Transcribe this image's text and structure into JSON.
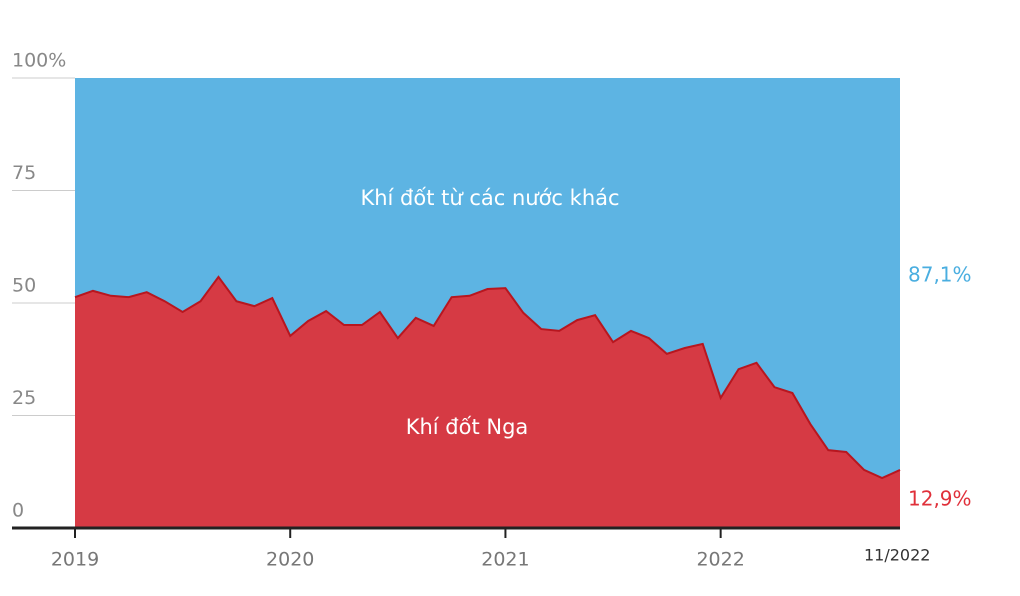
{
  "chart_data": {
    "type": "stacked-area",
    "x": [
      "2019-01",
      "2019-02",
      "2019-03",
      "2019-04",
      "2019-05",
      "2019-06",
      "2019-07",
      "2019-08",
      "2019-09",
      "2019-10",
      "2019-11",
      "2019-12",
      "2020-01",
      "2020-02",
      "2020-03",
      "2020-04",
      "2020-05",
      "2020-06",
      "2020-07",
      "2020-08",
      "2020-09",
      "2020-10",
      "2020-11",
      "2020-12",
      "2021-01",
      "2021-02",
      "2021-03",
      "2021-04",
      "2021-05",
      "2021-06",
      "2021-07",
      "2021-08",
      "2021-09",
      "2021-10",
      "2021-11",
      "2021-12",
      "2022-01",
      "2022-02",
      "2022-03",
      "2022-04",
      "2022-05",
      "2022-06",
      "2022-07",
      "2022-08",
      "2022-09",
      "2022-10",
      "2022-11"
    ],
    "series": [
      {
        "name": "Khí đốt Nga",
        "color": "#d63a44",
        "label_color": "#e0303a",
        "values": [
          51.3,
          52.7,
          51.6,
          51.3,
          52.4,
          50.4,
          48,
          50.4,
          55.8,
          50.4,
          49.3,
          51.1,
          42.7,
          46,
          48.2,
          45.1,
          45.1,
          48,
          42.2,
          46.7,
          44.9,
          51.3,
          51.6,
          53.1,
          53.3,
          47.8,
          44.2,
          43.8,
          46.2,
          47.3,
          41.3,
          43.8,
          42.2,
          38.7,
          40,
          40.9,
          28.9,
          35.3,
          36.7,
          31.3,
          30,
          23.1,
          17.3,
          16.9,
          12.9,
          11.1,
          12.9
        ],
        "value_labels": [
          null,
          null,
          null,
          null,
          null,
          null,
          null,
          null,
          null,
          null,
          null,
          null,
          null,
          null,
          null,
          null,
          null,
          null,
          null,
          null,
          null,
          null,
          null,
          null,
          null,
          null,
          null,
          null,
          null,
          null,
          null,
          null,
          null,
          null,
          null,
          null,
          null,
          null,
          null,
          null,
          null,
          null,
          null,
          null,
          null,
          null,
          "12,9%"
        ]
      },
      {
        "name": "Khí đốt từ các nước khác",
        "color": "#5db4e3",
        "label_color": "#4aaee0",
        "values": [
          48.7,
          47.3,
          48.4,
          48.7,
          47.6,
          49.6,
          52,
          49.6,
          44.2,
          49.6,
          50.7,
          48.9,
          57.3,
          54,
          51.8,
          54.9,
          54.9,
          52,
          57.8,
          53.3,
          55.1,
          48.7,
          48.4,
          46.9,
          46.7,
          52.2,
          55.8,
          56.2,
          53.8,
          52.7,
          58.7,
          56.2,
          57.8,
          61.3,
          60,
          59.1,
          71.1,
          64.7,
          63.3,
          68.7,
          70,
          76.9,
          82.7,
          83.1,
          87.1,
          88.9,
          87.1
        ],
        "value_labels": [
          null,
          null,
          null,
          null,
          null,
          null,
          null,
          null,
          null,
          null,
          null,
          null,
          null,
          null,
          null,
          null,
          null,
          null,
          null,
          null,
          null,
          null,
          null,
          null,
          null,
          null,
          null,
          null,
          null,
          null,
          null,
          null,
          null,
          null,
          null,
          null,
          null,
          null,
          null,
          null,
          null,
          null,
          null,
          null,
          null,
          null,
          "87,1%"
        ]
      }
    ],
    "xticks": [
      {
        "value": "2019-01",
        "label": "2019"
      },
      {
        "value": "2020-01",
        "label": "2020"
      },
      {
        "value": "2021-01",
        "label": "2021"
      },
      {
        "value": "2022-01",
        "label": "2022"
      },
      {
        "value": "2022-11",
        "label": "11/2022"
      }
    ],
    "ylim": [
      0,
      100
    ],
    "yticks": [
      0,
      25,
      50,
      75,
      {
        "value": 100,
        "label": "100%"
      }
    ],
    "grid": true
  }
}
